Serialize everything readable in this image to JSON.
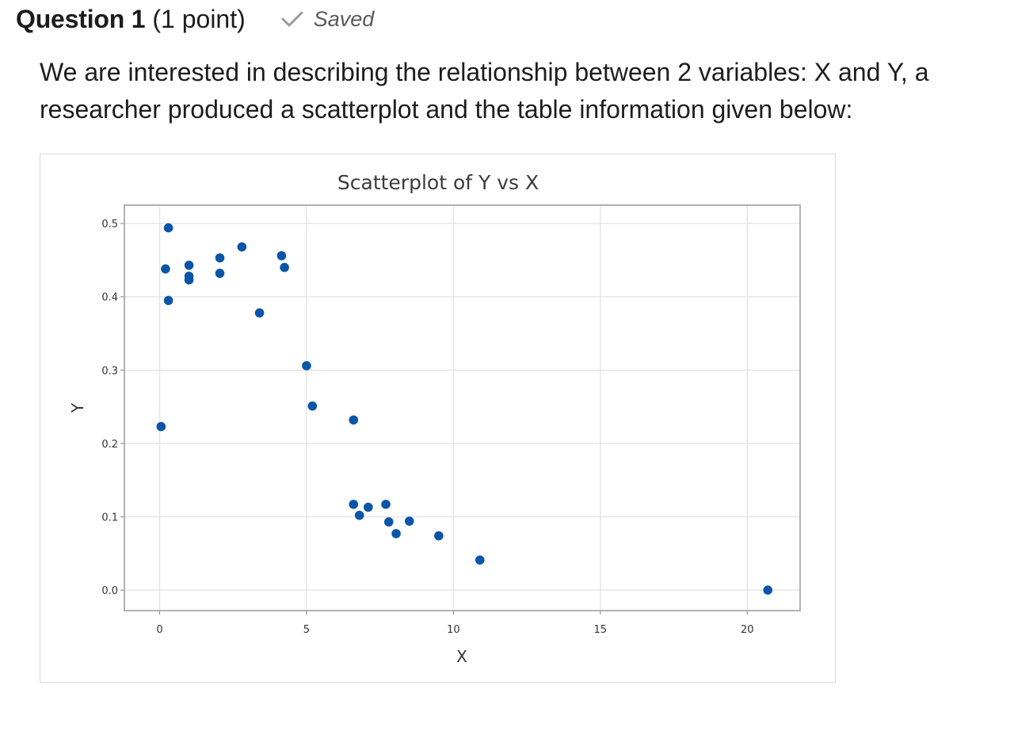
{
  "question": {
    "title": "Question 1",
    "points": "(1 point)",
    "status": "Saved",
    "status_icon": "checkmark-icon",
    "text": "We are interested in describing the relationship between 2 variables: X and Y,  a researcher produced a scatterplot and the table information given below:"
  },
  "colors": {
    "point": "#0a55a8",
    "grid": "#e6e6e6",
    "frame": "#9a9a9a"
  },
  "chart_data": {
    "type": "scatter",
    "title": "Scatterplot of Y vs X",
    "xlabel": "X",
    "ylabel": "Y",
    "xlim": [
      -1.2,
      21.8
    ],
    "ylim": [
      -0.028,
      0.525
    ],
    "xticks": [
      0,
      5,
      10,
      15,
      20
    ],
    "yticks": [
      0.0,
      0.1,
      0.2,
      0.3,
      0.4,
      0.5
    ],
    "xtick_labels": [
      "0",
      "5",
      "10",
      "15",
      "20"
    ],
    "ytick_labels": [
      "0.0",
      "0.1",
      "0.2",
      "0.3",
      "0.4",
      "0.5"
    ],
    "grid": true,
    "series": [
      {
        "name": "Y vs X",
        "points": [
          {
            "x": 0.05,
            "y": 0.223
          },
          {
            "x": 0.2,
            "y": 0.438
          },
          {
            "x": 0.3,
            "y": 0.494
          },
          {
            "x": 0.3,
            "y": 0.395
          },
          {
            "x": 1.0,
            "y": 0.443
          },
          {
            "x": 1.0,
            "y": 0.428
          },
          {
            "x": 1.0,
            "y": 0.423
          },
          {
            "x": 2.05,
            "y": 0.453
          },
          {
            "x": 2.05,
            "y": 0.432
          },
          {
            "x": 2.8,
            "y": 0.468
          },
          {
            "x": 3.4,
            "y": 0.378
          },
          {
            "x": 4.15,
            "y": 0.456
          },
          {
            "x": 4.25,
            "y": 0.44
          },
          {
            "x": 5.0,
            "y": 0.306
          },
          {
            "x": 5.2,
            "y": 0.251
          },
          {
            "x": 6.6,
            "y": 0.232
          },
          {
            "x": 6.6,
            "y": 0.117
          },
          {
            "x": 6.8,
            "y": 0.102
          },
          {
            "x": 7.1,
            "y": 0.113
          },
          {
            "x": 7.7,
            "y": 0.117
          },
          {
            "x": 7.8,
            "y": 0.093
          },
          {
            "x": 8.05,
            "y": 0.077
          },
          {
            "x": 8.5,
            "y": 0.094
          },
          {
            "x": 9.5,
            "y": 0.074
          },
          {
            "x": 10.9,
            "y": 0.041
          },
          {
            "x": 20.7,
            "y": 0.0
          }
        ]
      }
    ]
  }
}
